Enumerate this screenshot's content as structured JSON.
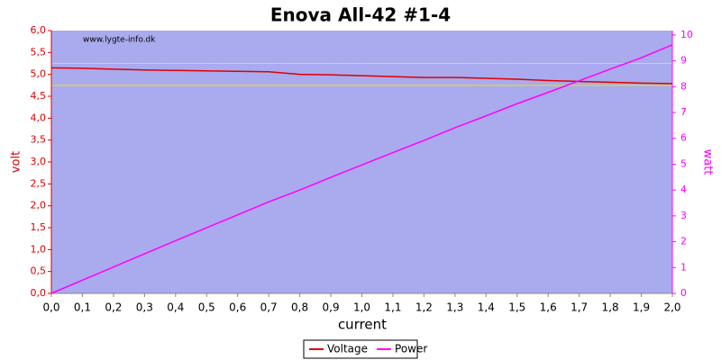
{
  "chart_data": {
    "type": "line",
    "title": "Enova All-42 #1-4",
    "watermark": "www.lygte-info.dk",
    "x_label": "current",
    "y_label": "volt",
    "y2_label": "watt",
    "x": [
      0,
      0.1,
      0.2,
      0.3,
      0.4,
      0.5,
      0.6,
      0.7,
      0.8,
      0.9,
      1.0,
      1.1,
      1.2,
      1.3,
      1.4,
      1.5,
      1.6,
      1.7,
      1.8,
      1.9,
      2.0
    ],
    "series": [
      {
        "name": "Voltage",
        "color": "#dd0000",
        "axis": "y",
        "values": [
          5.15,
          5.14,
          5.12,
          5.1,
          5.09,
          5.08,
          5.07,
          5.06,
          5.0,
          4.99,
          4.97,
          4.95,
          4.93,
          4.93,
          4.91,
          4.89,
          4.86,
          4.84,
          4.82,
          4.8,
          4.79
        ]
      },
      {
        "name": "Power",
        "color": "#ff00ff",
        "axis": "y2",
        "values": [
          0,
          0.51,
          1.02,
          1.53,
          2.04,
          2.54,
          3.04,
          3.54,
          4.0,
          4.49,
          4.97,
          5.45,
          5.92,
          6.41,
          6.87,
          7.34,
          7.78,
          8.23,
          8.68,
          9.12,
          9.62
        ]
      }
    ],
    "reference_lines": [
      5.25,
      4.75
    ],
    "reference_color": "#e8e800",
    "plot_background": "#aaaaee",
    "grid": false,
    "legend_position": "bottom",
    "xlim": [
      0,
      2.0
    ],
    "xticks": [
      {
        "value": 0,
        "label": "0,0"
      },
      {
        "value": 0.1,
        "label": "0,1"
      },
      {
        "value": 0.2,
        "label": "0,2"
      },
      {
        "value": 0.3,
        "label": "0,3"
      },
      {
        "value": 0.4,
        "label": "0,4"
      },
      {
        "value": 0.5,
        "label": "0,5"
      },
      {
        "value": 0.6,
        "label": "0,6"
      },
      {
        "value": 0.7,
        "label": "0,7"
      },
      {
        "value": 0.8,
        "label": "0,8"
      },
      {
        "value": 0.9,
        "label": "0,9"
      },
      {
        "value": 1.0,
        "label": "1,0"
      },
      {
        "value": 1.1,
        "label": "1,1"
      },
      {
        "value": 1.2,
        "label": "1,2"
      },
      {
        "value": 1.3,
        "label": "1,3"
      },
      {
        "value": 1.4,
        "label": "1,4"
      },
      {
        "value": 1.5,
        "label": "1,5"
      },
      {
        "value": 1.6,
        "label": "1,6"
      },
      {
        "value": 1.7,
        "label": "1,7"
      },
      {
        "value": 1.8,
        "label": "1,8"
      },
      {
        "value": 1.9,
        "label": "1,9"
      },
      {
        "value": 2.0,
        "label": "2,0"
      }
    ],
    "ylim": [
      0,
      6.0
    ],
    "yticks": [
      {
        "value": 0,
        "label": "0,0"
      },
      {
        "value": 0.5,
        "label": "0,5"
      },
      {
        "value": 1.0,
        "label": "1,0"
      },
      {
        "value": 1.5,
        "label": "1,5"
      },
      {
        "value": 2.0,
        "label": "2,0"
      },
      {
        "value": 2.5,
        "label": "2,5"
      },
      {
        "value": 3.0,
        "label": "3,0"
      },
      {
        "value": 3.5,
        "label": "3,5"
      },
      {
        "value": 4.0,
        "label": "4,0"
      },
      {
        "value": 4.5,
        "label": "4,5"
      },
      {
        "value": 5.0,
        "label": "5,0"
      },
      {
        "value": 5.5,
        "label": "5,5"
      },
      {
        "value": 6.0,
        "label": "6,0"
      }
    ],
    "y2lim": [
      0,
      10.17
    ],
    "y2ticks": [
      0,
      1,
      2,
      3,
      4,
      5,
      6,
      7,
      8,
      9,
      10
    ]
  }
}
